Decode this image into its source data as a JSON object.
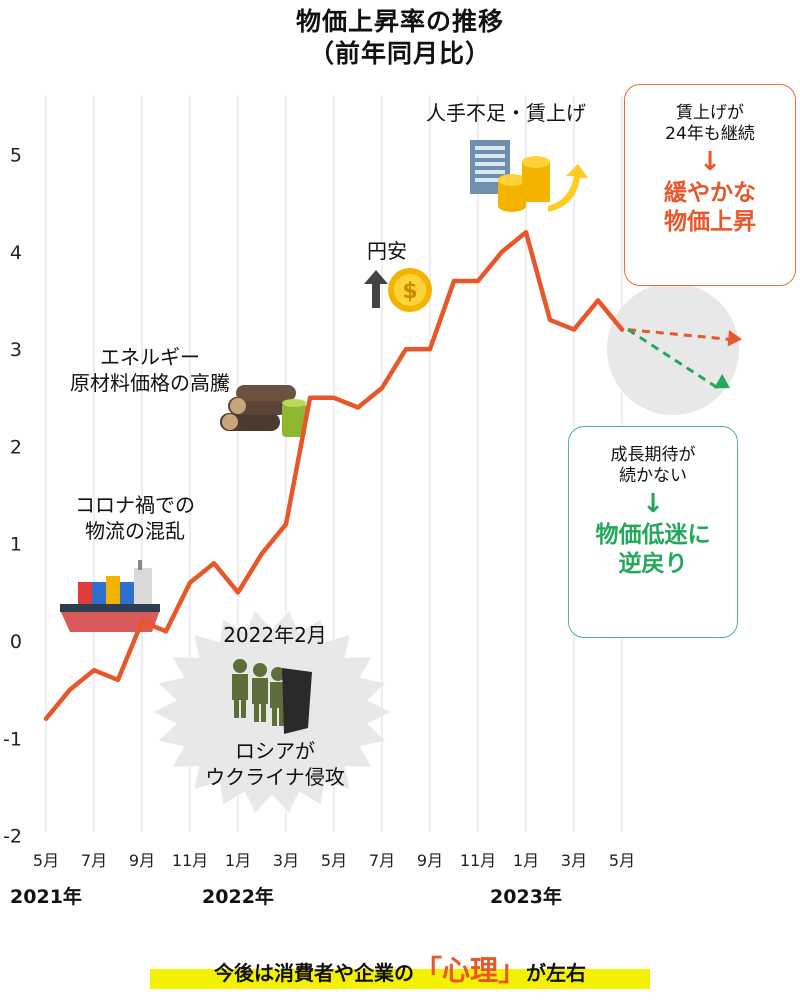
{
  "header": {
    "title_line1": "物価上昇率の推移",
    "title_line2": "（前年同月比）"
  },
  "chart_data": {
    "type": "line",
    "title": "物価上昇率の推移（前年同月比）",
    "xlabel": "",
    "ylabel": "",
    "ylim": [
      -2,
      5.5
    ],
    "yticks": [
      -2,
      -1,
      0,
      1,
      2,
      3,
      4,
      5
    ],
    "grid": true,
    "categories": [
      "5月",
      "6月",
      "7月",
      "8月",
      "9月",
      "10月",
      "11月",
      "12月",
      "1月",
      "2月",
      "3月",
      "4月",
      "5月",
      "6月",
      "7月",
      "8月",
      "9月",
      "10月",
      "11月",
      "12月",
      "1月",
      "2月",
      "3月",
      "4月",
      "5月"
    ],
    "xtick_labels": [
      "5月",
      "7月",
      "9月",
      "11月",
      "1月",
      "3月",
      "5月",
      "7月",
      "9月",
      "11月",
      "1月",
      "3月",
      "5月"
    ],
    "year_labels": [
      "2021年",
      "2022年",
      "2023年"
    ],
    "series": [
      {
        "values": [
          -0.8,
          -0.5,
          -0.3,
          -0.4,
          0.2,
          0.1,
          0.6,
          0.8,
          0.5,
          0.9,
          1.2,
          2.5,
          2.5,
          2.4,
          2.6,
          3.0,
          3.0,
          3.7,
          3.7,
          4.0,
          4.2,
          3.3,
          3.2,
          3.5,
          3.2
        ],
        "color": "#e8562a"
      }
    ],
    "projections": [
      {
        "label": "緩やかな物価上昇",
        "color": "#e8562a",
        "end_value": 3.1
      },
      {
        "label": "物価低迷に逆戻り",
        "color": "#22a85a",
        "end_value": 2.6
      }
    ],
    "annotations": [
      {
        "lines": [
          "コロナ禍での",
          "物流の混乱"
        ],
        "icon": "container-ship-icon"
      },
      {
        "lines": [
          "エネルギー",
          "原材料価格の高騰"
        ],
        "icon": "logs-and-barrel-icon"
      },
      {
        "lines": [
          "2022年2月",
          "ロシアが",
          "ウクライナ侵攻"
        ],
        "icon": "soldiers-icon"
      },
      {
        "lines": [
          "円安"
        ],
        "icon": "yen-coin-up-icon"
      },
      {
        "lines": [
          "人手不足・賃上げ"
        ],
        "icon": "building-coins-icon"
      }
    ]
  },
  "callouts": {
    "red": {
      "question": [
        "賃上げが",
        "24年も継続"
      ],
      "arrow": "↓",
      "result": [
        "緩やかな",
        "物価上昇"
      ]
    },
    "green": {
      "question": [
        "成長期待が",
        "続かない"
      ],
      "arrow": "↓",
      "result": [
        "物価低迷に",
        "逆戻り"
      ]
    }
  },
  "footer": {
    "pre": "今後は消費者や企業の",
    "emph": "「心理」",
    "post": "が左右"
  },
  "colors": {
    "line": "#e8562a",
    "green": "#22a85a",
    "highlight": "#f4f100",
    "grid": "#dddddd"
  }
}
